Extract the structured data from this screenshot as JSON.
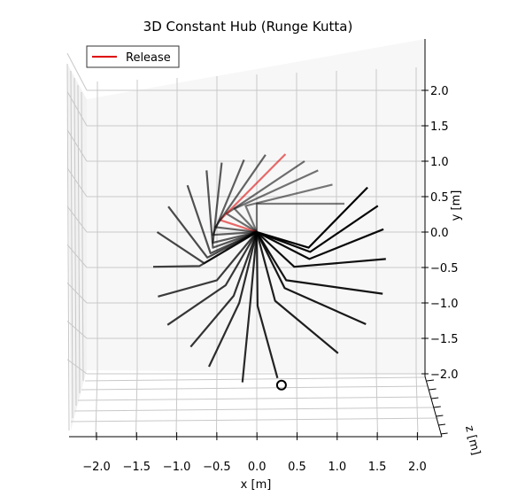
{
  "chart_data": {
    "type": "line",
    "title": "3D Constant Hub (Runge Kutta)",
    "xlabel": "x [m]",
    "ylabel": "y [m]",
    "zlabel": "z [m]",
    "xlim": [
      -2.2,
      2.2
    ],
    "ylim": [
      -2.2,
      2.2
    ],
    "x_ticks": [
      "−2.0",
      "−1.5",
      "−1.0",
      "−0.5",
      "0.0",
      "0.5",
      "1.0",
      "1.5",
      "2.0"
    ],
    "y_ticks": [
      "2.0",
      "1.5",
      "1.0",
      "0.5",
      "0.0",
      "−0.5",
      "−1.0",
      "−1.5",
      "−2.0"
    ],
    "grid": true,
    "legend_position": "top-left",
    "legend": [
      {
        "label": "Release",
        "color": "#dd0000"
      }
    ],
    "hub": [
      0,
      0
    ],
    "series_color": "#000000",
    "release_color": "#dd0000",
    "segments": [
      {
        "elbow": [
          0.0,
          0.4
        ],
        "tip": [
          1.1,
          0.4
        ],
        "opacity": 0.5
      },
      {
        "elbow": [
          -0.14,
          0.37
        ],
        "tip": [
          0.95,
          0.67
        ],
        "opacity": 0.52
      },
      {
        "elbow": [
          -0.28,
          0.33
        ],
        "tip": [
          0.77,
          0.87
        ],
        "opacity": 0.54
      },
      {
        "elbow": [
          -0.38,
          0.26
        ],
        "tip": [
          0.6,
          1.0
        ],
        "opacity": 0.56
      },
      {
        "elbow": [
          -0.46,
          0.17
        ],
        "tip": [
          0.36,
          1.1
        ],
        "opacity": 0.58,
        "release": true
      },
      {
        "elbow": [
          -0.52,
          0.07
        ],
        "tip": [
          0.11,
          1.09
        ],
        "opacity": 0.6
      },
      {
        "elbow": [
          -0.55,
          -0.04
        ],
        "tip": [
          -0.16,
          1.02
        ],
        "opacity": 0.62
      },
      {
        "elbow": [
          -0.55,
          -0.15
        ],
        "tip": [
          -0.44,
          0.98
        ],
        "opacity": 0.64
      },
      {
        "elbow": [
          -0.55,
          -0.22
        ],
        "tip": [
          -0.63,
          0.87
        ],
        "opacity": 0.66
      },
      {
        "elbow": [
          -0.58,
          -0.3
        ],
        "tip": [
          -0.87,
          0.66
        ],
        "opacity": 0.68
      },
      {
        "elbow": [
          -0.62,
          -0.36
        ],
        "tip": [
          -1.11,
          0.36
        ],
        "opacity": 0.7
      },
      {
        "elbow": [
          -0.66,
          -0.44
        ],
        "tip": [
          -1.25,
          0.0
        ],
        "opacity": 0.72
      },
      {
        "elbow": [
          -0.72,
          -0.48
        ],
        "tip": [
          -1.3,
          -0.49
        ],
        "opacity": 0.74
      },
      {
        "elbow": [
          -0.5,
          -0.68
        ],
        "tip": [
          -1.24,
          -0.91
        ],
        "opacity": 0.76
      },
      {
        "elbow": [
          -0.39,
          -0.75
        ],
        "tip": [
          -1.12,
          -1.31
        ],
        "opacity": 0.78
      },
      {
        "elbow": [
          -0.29,
          -0.9
        ],
        "tip": [
          -0.83,
          -1.62
        ],
        "opacity": 0.8
      },
      {
        "elbow": [
          -0.22,
          -1.0
        ],
        "tip": [
          -0.6,
          -1.9
        ],
        "opacity": 0.82
      },
      {
        "elbow": [
          -0.08,
          -0.98
        ],
        "tip": [
          -0.18,
          -2.12
        ],
        "opacity": 0.84
      },
      {
        "elbow": [
          0.01,
          -1.04
        ],
        "tip": [
          0.26,
          -2.06
        ],
        "opacity": 0.86
      },
      {
        "elbow": [
          0.23,
          -0.97
        ],
        "tip": [
          1.02,
          -1.71
        ],
        "opacity": 0.88
      },
      {
        "elbow": [
          0.35,
          -0.79
        ],
        "tip": [
          1.37,
          -1.3
        ],
        "opacity": 0.9
      },
      {
        "elbow": [
          0.37,
          -0.68
        ],
        "tip": [
          1.58,
          -0.87
        ],
        "opacity": 0.92
      },
      {
        "elbow": [
          0.47,
          -0.49
        ],
        "tip": [
          1.62,
          -0.38
        ],
        "opacity": 0.94
      },
      {
        "elbow": [
          0.66,
          -0.38
        ],
        "tip": [
          1.59,
          0.04
        ],
        "opacity": 0.96
      },
      {
        "elbow": [
          0.67,
          -0.28
        ],
        "tip": [
          1.52,
          0.37
        ],
        "opacity": 0.98
      },
      {
        "elbow": [
          0.65,
          -0.22
        ],
        "tip": [
          1.39,
          0.63
        ],
        "opacity": 1.0
      }
    ],
    "end_marker": [
      0.31,
      -2.16
    ]
  }
}
